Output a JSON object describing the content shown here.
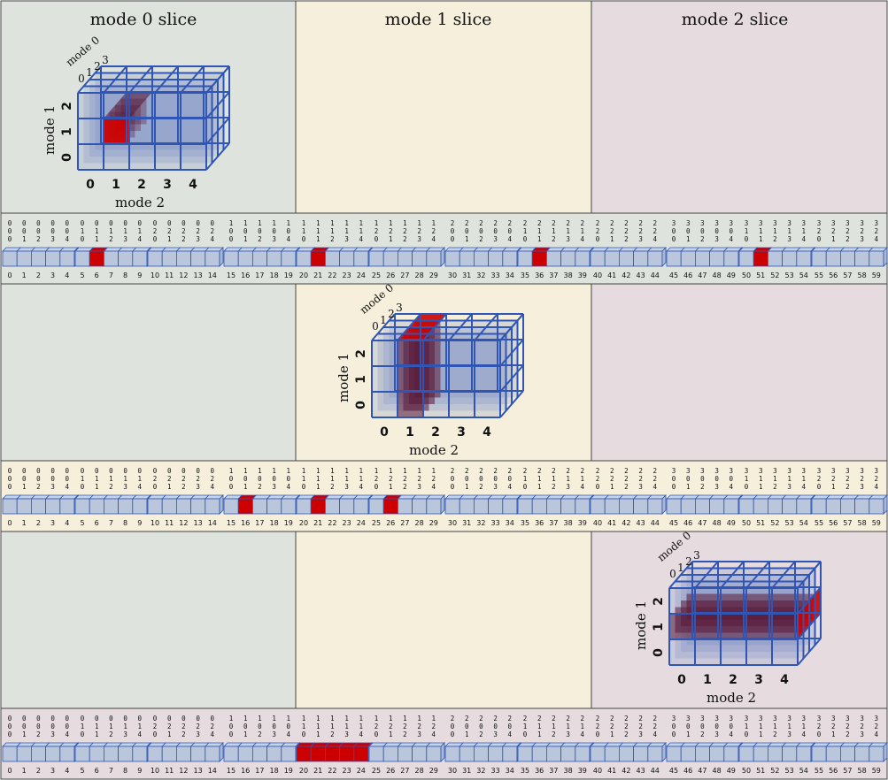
{
  "columns": [
    {
      "title": "mode 0 slice"
    },
    {
      "title": "mode 1 slice"
    },
    {
      "title": "mode 2 slice"
    }
  ],
  "colors": {
    "mode0_bg": "#dfe3dd",
    "mode1_bg": "#f5efdb",
    "mode2_bg": "#e6dbdf",
    "cube_edge": "#2f55b5",
    "cube_fill": "#6f86c5",
    "highlight": "#cc0000",
    "highlight_dark": "#5a1a38"
  },
  "tensor": {
    "shape": [
      4,
      3,
      5
    ],
    "axis_labels": {
      "mode0": "mode 0",
      "mode1": "mode 1",
      "mode2": "mode 2"
    },
    "mode0_ticks": [
      "0",
      "1",
      "2",
      "3"
    ],
    "mode1_ticks": [
      "0",
      "1",
      "2"
    ],
    "mode2_ticks": [
      "0",
      "1",
      "2",
      "3",
      "4"
    ]
  },
  "panels": [
    {
      "slice": "mode 0 slice",
      "highlight": "mode 0 = 1, mode 1 = 1, mode 2 = 1",
      "highlighted_indices": [
        6,
        21,
        36,
        51
      ]
    },
    {
      "slice": "mode 1 slice",
      "highlight": "mode 0 = 0..3, mode 1 = 0..2, mode 2 = 1",
      "highlighted_indices": [
        16,
        21,
        26
      ]
    },
    {
      "slice": "mode 2 slice",
      "highlight": "mode 0 = 1, mode 1 = 1, mode 2 = 0..4",
      "highlighted_indices": [
        20,
        21,
        22,
        23,
        24
      ]
    }
  ],
  "unfolding": {
    "count": 60,
    "group_size": 5,
    "digit_rows": "index digits (mode 0, mode 1, mode 2) stacked above each element"
  }
}
